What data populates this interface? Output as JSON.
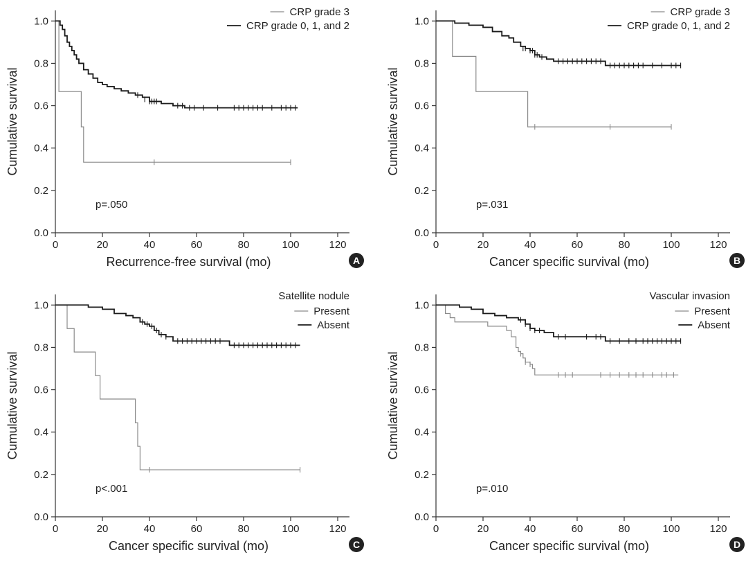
{
  "colors": {
    "grey_series": "#8a8a8a",
    "black_series": "#1a1a1a",
    "axis": "#333333",
    "badge": "#222222"
  },
  "chart_data": [
    {
      "type": "line",
      "panel_label": "A",
      "xlabel": "Recurrence-free survival (mo)",
      "ylabel": "Cumulative survival",
      "xlim": [
        0,
        125
      ],
      "ylim": [
        0,
        1.05
      ],
      "xticks": [
        0,
        20,
        40,
        60,
        80,
        100,
        120
      ],
      "yticks": [
        0.0,
        0.2,
        0.4,
        0.6,
        0.8,
        1.0
      ],
      "xtick_labels": [
        "0",
        "20",
        "40",
        "60",
        "80",
        "100",
        "120"
      ],
      "ytick_labels": [
        "0.0",
        "0.2",
        "0.4",
        "0.6",
        "0.8",
        "1.0"
      ],
      "legend_title": "",
      "legend_position": "top-right",
      "annotation": "p=.050",
      "series": [
        {
          "name": "CRP grade 3",
          "color": "grey",
          "x": [
            0,
            1.5,
            11,
            12,
            100
          ],
          "y": [
            1.0,
            0.667,
            0.5,
            0.333,
            0.333
          ],
          "censored": [
            [
              42,
              0.333
            ],
            [
              100,
              0.333
            ]
          ]
        },
        {
          "name": "CRP grade 0, 1, and 2",
          "color": "black",
          "x": [
            0,
            2,
            3,
            4,
            5,
            6,
            7,
            8,
            9,
            10,
            12,
            14,
            16,
            18,
            20,
            22,
            25,
            28,
            31,
            34,
            37,
            40,
            45,
            50,
            55,
            103
          ],
          "y": [
            1.0,
            0.98,
            0.96,
            0.93,
            0.9,
            0.88,
            0.86,
            0.84,
            0.82,
            0.8,
            0.77,
            0.75,
            0.73,
            0.71,
            0.7,
            0.69,
            0.68,
            0.67,
            0.66,
            0.65,
            0.64,
            0.62,
            0.61,
            0.6,
            0.59,
            0.59
          ],
          "censored": [
            [
              35,
              0.65
            ],
            [
              38,
              0.63
            ],
            [
              40,
              0.62
            ],
            [
              41,
              0.62
            ],
            [
              42,
              0.62
            ],
            [
              43,
              0.62
            ],
            [
              52,
              0.6
            ],
            [
              54,
              0.6
            ],
            [
              57,
              0.59
            ],
            [
              59,
              0.59
            ],
            [
              63,
              0.59
            ],
            [
              69,
              0.59
            ],
            [
              76,
              0.59
            ],
            [
              78,
              0.59
            ],
            [
              80,
              0.59
            ],
            [
              82,
              0.59
            ],
            [
              84,
              0.59
            ],
            [
              86,
              0.59
            ],
            [
              88,
              0.59
            ],
            [
              92,
              0.59
            ],
            [
              96,
              0.59
            ],
            [
              98,
              0.59
            ],
            [
              100,
              0.59
            ],
            [
              102,
              0.59
            ]
          ]
        }
      ]
    },
    {
      "type": "line",
      "panel_label": "B",
      "xlabel": "Cancer specific survival (mo)",
      "ylabel": "Cumulative survival",
      "xlim": [
        0,
        125
      ],
      "ylim": [
        0,
        1.05
      ],
      "xticks": [
        0,
        20,
        40,
        60,
        80,
        100,
        120
      ],
      "yticks": [
        0.0,
        0.2,
        0.4,
        0.6,
        0.8,
        1.0
      ],
      "xtick_labels": [
        "0",
        "20",
        "40",
        "60",
        "80",
        "100",
        "120"
      ],
      "ytick_labels": [
        "0.0",
        "0.2",
        "0.4",
        "0.6",
        "0.8",
        "1.0"
      ],
      "legend_title": "",
      "legend_position": "top-right",
      "annotation": "p=.031",
      "series": [
        {
          "name": "CRP grade 3",
          "color": "grey",
          "x": [
            0,
            7,
            17,
            39,
            100
          ],
          "y": [
            1.0,
            0.833,
            0.667,
            0.5,
            0.5
          ],
          "censored": [
            [
              42,
              0.5
            ],
            [
              74,
              0.5
            ],
            [
              100,
              0.5
            ]
          ]
        },
        {
          "name": "CRP grade 0, 1, and 2",
          "color": "black",
          "x": [
            0,
            8,
            14,
            20,
            24,
            28,
            31,
            33,
            36,
            38,
            40,
            42,
            44,
            47,
            50,
            52,
            72,
            104
          ],
          "y": [
            1.0,
            0.99,
            0.98,
            0.97,
            0.95,
            0.93,
            0.92,
            0.9,
            0.88,
            0.87,
            0.86,
            0.84,
            0.83,
            0.82,
            0.81,
            0.81,
            0.79,
            0.79
          ],
          "censored": [
            [
              37,
              0.87
            ],
            [
              38,
              0.87
            ],
            [
              40,
              0.86
            ],
            [
              41,
              0.86
            ],
            [
              42,
              0.84
            ],
            [
              43,
              0.84
            ],
            [
              45,
              0.83
            ],
            [
              52,
              0.81
            ],
            [
              54,
              0.81
            ],
            [
              56,
              0.81
            ],
            [
              58,
              0.81
            ],
            [
              60,
              0.81
            ],
            [
              62,
              0.81
            ],
            [
              64,
              0.81
            ],
            [
              66,
              0.81
            ],
            [
              68,
              0.81
            ],
            [
              70,
              0.81
            ],
            [
              74,
              0.79
            ],
            [
              76,
              0.79
            ],
            [
              78,
              0.79
            ],
            [
              80,
              0.79
            ],
            [
              82,
              0.79
            ],
            [
              84,
              0.79
            ],
            [
              86,
              0.79
            ],
            [
              88,
              0.79
            ],
            [
              92,
              0.79
            ],
            [
              96,
              0.79
            ],
            [
              100,
              0.79
            ],
            [
              102,
              0.79
            ],
            [
              104,
              0.79
            ]
          ]
        }
      ]
    },
    {
      "type": "line",
      "panel_label": "C",
      "xlabel": "Cancer specific survival (mo)",
      "ylabel": "Cumulative survival",
      "xlim": [
        0,
        125
      ],
      "ylim": [
        0,
        1.05
      ],
      "xticks": [
        0,
        20,
        40,
        60,
        80,
        100,
        120
      ],
      "yticks": [
        0.0,
        0.2,
        0.4,
        0.6,
        0.8,
        1.0
      ],
      "xtick_labels": [
        "0",
        "20",
        "40",
        "60",
        "80",
        "100",
        "120"
      ],
      "ytick_labels": [
        "0.0",
        "0.2",
        "0.4",
        "0.6",
        "0.8",
        "1.0"
      ],
      "legend_title": "Satellite nodule",
      "legend_position": "top-right",
      "annotation": "p<.001",
      "series": [
        {
          "name": "Present",
          "color": "grey",
          "x": [
            0,
            5,
            8,
            17,
            19,
            34,
            35,
            36,
            104
          ],
          "y": [
            1.0,
            0.889,
            0.778,
            0.667,
            0.556,
            0.444,
            0.333,
            0.222,
            0.222
          ],
          "censored": [
            [
              40,
              0.222
            ],
            [
              104,
              0.222
            ]
          ]
        },
        {
          "name": "Absent",
          "color": "black",
          "x": [
            0,
            14,
            20,
            25,
            30,
            33,
            36,
            38,
            40,
            42,
            44,
            47,
            50,
            55,
            74,
            104
          ],
          "y": [
            1.0,
            0.99,
            0.98,
            0.96,
            0.95,
            0.94,
            0.92,
            0.91,
            0.9,
            0.88,
            0.86,
            0.85,
            0.83,
            0.83,
            0.81,
            0.81
          ],
          "censored": [
            [
              37,
              0.92
            ],
            [
              39,
              0.91
            ],
            [
              41,
              0.9
            ],
            [
              43,
              0.88
            ],
            [
              45,
              0.86
            ],
            [
              47,
              0.85
            ],
            [
              52,
              0.83
            ],
            [
              54,
              0.83
            ],
            [
              56,
              0.83
            ],
            [
              58,
              0.83
            ],
            [
              60,
              0.83
            ],
            [
              62,
              0.83
            ],
            [
              64,
              0.83
            ],
            [
              66,
              0.83
            ],
            [
              68,
              0.83
            ],
            [
              70,
              0.83
            ],
            [
              76,
              0.81
            ],
            [
              78,
              0.81
            ],
            [
              80,
              0.81
            ],
            [
              82,
              0.81
            ],
            [
              84,
              0.81
            ],
            [
              86,
              0.81
            ],
            [
              88,
              0.81
            ],
            [
              90,
              0.81
            ],
            [
              92,
              0.81
            ],
            [
              94,
              0.81
            ],
            [
              96,
              0.81
            ],
            [
              98,
              0.81
            ],
            [
              100,
              0.81
            ],
            [
              102,
              0.81
            ]
          ]
        }
      ]
    },
    {
      "type": "line",
      "panel_label": "D",
      "xlabel": "Cancer specific survival (mo)",
      "ylabel": "Cumulative survival",
      "xlim": [
        0,
        125
      ],
      "ylim": [
        0,
        1.05
      ],
      "xticks": [
        0,
        20,
        40,
        60,
        80,
        100,
        120
      ],
      "yticks": [
        0.0,
        0.2,
        0.4,
        0.6,
        0.8,
        1.0
      ],
      "xtick_labels": [
        "0",
        "20",
        "40",
        "60",
        "80",
        "100",
        "120"
      ],
      "ytick_labels": [
        "0.0",
        "0.2",
        "0.4",
        "0.6",
        "0.8",
        "1.0"
      ],
      "legend_title": "Vascular invasion",
      "legend_position": "top-right",
      "annotation": "p=.010",
      "series": [
        {
          "name": "Present",
          "color": "grey",
          "x": [
            0,
            4,
            6,
            8,
            18,
            22,
            30,
            32,
            34,
            35,
            36,
            37,
            38,
            40,
            41,
            42,
            103
          ],
          "y": [
            1.0,
            0.96,
            0.94,
            0.92,
            0.92,
            0.9,
            0.88,
            0.85,
            0.8,
            0.78,
            0.77,
            0.75,
            0.73,
            0.72,
            0.7,
            0.67,
            0.67
          ],
          "censored": [
            [
              36,
              0.77
            ],
            [
              38,
              0.73
            ],
            [
              40,
              0.72
            ],
            [
              52,
              0.67
            ],
            [
              55,
              0.67
            ],
            [
              58,
              0.67
            ],
            [
              70,
              0.67
            ],
            [
              74,
              0.67
            ],
            [
              78,
              0.67
            ],
            [
              82,
              0.67
            ],
            [
              85,
              0.67
            ],
            [
              88,
              0.67
            ],
            [
              92,
              0.67
            ],
            [
              96,
              0.67
            ],
            [
              98,
              0.67
            ],
            [
              101,
              0.67
            ]
          ]
        },
        {
          "name": "Absent",
          "color": "black",
          "x": [
            0,
            10,
            15,
            20,
            25,
            30,
            35,
            38,
            40,
            42,
            46,
            50,
            60,
            72,
            104
          ],
          "y": [
            1.0,
            0.99,
            0.98,
            0.96,
            0.95,
            0.94,
            0.93,
            0.91,
            0.89,
            0.88,
            0.87,
            0.85,
            0.85,
            0.83,
            0.83
          ],
          "censored": [
            [
              36,
              0.93
            ],
            [
              38,
              0.91
            ],
            [
              40,
              0.89
            ],
            [
              42,
              0.88
            ],
            [
              44,
              0.88
            ],
            [
              52,
              0.85
            ],
            [
              55,
              0.85
            ],
            [
              64,
              0.85
            ],
            [
              68,
              0.85
            ],
            [
              70,
              0.85
            ],
            [
              74,
              0.83
            ],
            [
              78,
              0.83
            ],
            [
              82,
              0.83
            ],
            [
              85,
              0.83
            ],
            [
              88,
              0.83
            ],
            [
              90,
              0.83
            ],
            [
              92,
              0.83
            ],
            [
              94,
              0.83
            ],
            [
              96,
              0.83
            ],
            [
              98,
              0.83
            ],
            [
              100,
              0.83
            ],
            [
              102,
              0.83
            ],
            [
              104,
              0.83
            ]
          ]
        }
      ]
    }
  ]
}
